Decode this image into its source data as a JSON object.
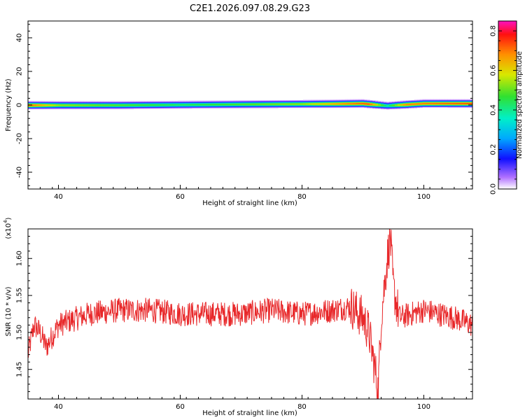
{
  "page_title": "C2E1.2026.097.08.29.G23",
  "chart_data": [
    {
      "type": "heatmap",
      "title": "C2E1.2026.097.08.29.G23",
      "xlabel": "Height of straight line (km)",
      "ylabel": "Frequency (Hz)",
      "xlim": [
        35,
        108
      ],
      "ylim": [
        -50,
        50
      ],
      "x_ticks": [
        "40",
        "60",
        "80",
        "100"
      ],
      "y_ticks": [
        "40",
        "20",
        "0",
        "-20",
        "-40"
      ],
      "colorbar": {
        "label": "Normalized spectral amplitude",
        "range": [
          0.0,
          0.85
        ],
        "ticks": [
          "0.0",
          "0.2",
          "0.4",
          "0.6",
          "0.8"
        ]
      },
      "band": {
        "center_frequency_profile": [
          [
            35,
            0.0
          ],
          [
            50,
            0.0
          ],
          [
            70,
            0.5
          ],
          [
            85,
            0.8
          ],
          [
            90,
            1.0
          ],
          [
            94,
            -0.3
          ],
          [
            100,
            1.0
          ],
          [
            108,
            1.0
          ]
        ],
        "peak_amplitude_profile": [
          [
            35,
            0.75
          ],
          [
            40,
            0.55
          ],
          [
            60,
            0.45
          ],
          [
            80,
            0.55
          ],
          [
            87,
            0.7
          ],
          [
            91,
            0.75
          ],
          [
            94,
            0.4
          ],
          [
            97,
            0.7
          ],
          [
            108,
            0.75
          ]
        ]
      }
    },
    {
      "type": "line",
      "xlabel": "Height of straight line (km)",
      "ylabel": "SNR (10 * v/v)",
      "y_multiplier": "(x10",
      "y_multiplier_exp": "4",
      "y_multiplier_close": ")",
      "xlim": [
        35,
        108
      ],
      "ylim": [
        1.41,
        1.64
      ],
      "x_ticks": [
        "40",
        "60",
        "80",
        "100"
      ],
      "y_ticks": [
        "1.45",
        "1.50",
        "1.55",
        "1.60"
      ],
      "series": [
        {
          "color": "#e8282a",
          "x": [
            35,
            36,
            37,
            38,
            40,
            45,
            50,
            55,
            60,
            65,
            70,
            75,
            80,
            85,
            88,
            90,
            91,
            92,
            92.5,
            93,
            94,
            94.5,
            95,
            96,
            98,
            100,
            105,
            108
          ],
          "y": [
            1.47,
            1.51,
            1.5,
            1.48,
            1.51,
            1.525,
            1.53,
            1.53,
            1.525,
            1.525,
            1.525,
            1.53,
            1.525,
            1.53,
            1.535,
            1.52,
            1.5,
            1.45,
            1.42,
            1.52,
            1.6,
            1.63,
            1.56,
            1.52,
            1.525,
            1.53,
            1.52,
            1.51
          ]
        }
      ]
    }
  ]
}
